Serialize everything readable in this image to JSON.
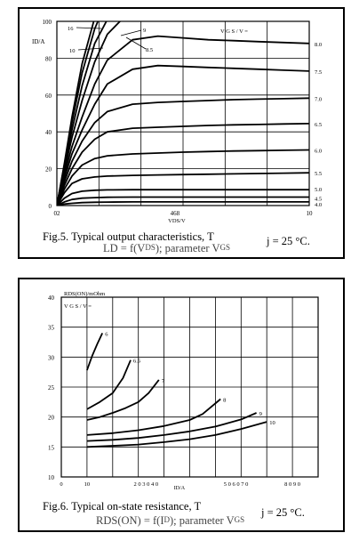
{
  "chart_data": [
    {
      "type": "line",
      "caption": {
        "line1": "Fig.5. Typical output characteristics, T",
        "line1_right": "j = 25 °C.",
        "line2_sub": "L",
        "line2": "D = f(V",
        "line2_small": "DS",
        "line2_rest": "); parameter V",
        "line2_tail": "GS"
      },
      "ylabel": "ID/A",
      "xlabel": "VDS/V",
      "legend_title": "V G S / V  =",
      "xlim": [
        0,
        10
      ],
      "ylim": [
        0,
        100
      ],
      "x_ticks": [
        {
          "v": 0,
          "label": "02"
        },
        {
          "v": 4.68,
          "label": "468"
        },
        {
          "v": 10,
          "label": "10"
        }
      ],
      "y_ticks": [
        0,
        20,
        40,
        60,
        80,
        100
      ],
      "series": [
        {
          "name": "4.0",
          "x": [
            0,
            0.3,
            0.6,
            1,
            1.5,
            2,
            3,
            4,
            5,
            6,
            7,
            8,
            9,
            10
          ],
          "y": [
            0,
            0.8,
            1.2,
            1.6,
            1.8,
            1.9,
            2,
            2,
            2,
            2,
            2,
            2,
            2,
            2
          ]
        },
        {
          "name": "4.5",
          "x": [
            0,
            0.3,
            0.6,
            1,
            1.5,
            2,
            3,
            4,
            5,
            6,
            7,
            8,
            9,
            10
          ],
          "y": [
            0,
            2,
            3.3,
            4,
            4.3,
            4.5,
            4.6,
            4.6,
            4.6,
            4.6,
            4.6,
            4.6,
            4.6,
            4.6
          ]
        },
        {
          "name": "5.0",
          "x": [
            0,
            0.3,
            0.6,
            1,
            1.5,
            2,
            3,
            4,
            5,
            6,
            7,
            8,
            9,
            10
          ],
          "y": [
            0,
            4,
            6.5,
            7.8,
            8.3,
            8.5,
            8.6,
            8.6,
            8.6,
            8.6,
            8.6,
            8.6,
            8.6,
            8.6
          ]
        },
        {
          "name": "5.5",
          "x": [
            0,
            0.3,
            0.6,
            1,
            1.5,
            2,
            3,
            4,
            5,
            6,
            7,
            8,
            9,
            10
          ],
          "y": [
            0,
            7,
            12,
            14.5,
            15.5,
            16,
            16.4,
            16.6,
            16.8,
            17,
            17.2,
            17.4,
            17.6,
            17.8
          ]
        },
        {
          "name": "6.0",
          "x": [
            0,
            0.3,
            0.6,
            1,
            1.5,
            2,
            3,
            4,
            5,
            6,
            7,
            8,
            9,
            10
          ],
          "y": [
            0,
            9,
            16,
            22,
            25.5,
            27,
            28,
            28.5,
            29,
            29.3,
            29.6,
            29.8,
            30,
            30.2
          ]
        },
        {
          "name": "6.5",
          "x": [
            0,
            0.3,
            0.6,
            1,
            1.5,
            2,
            3,
            4,
            5,
            6,
            7,
            8,
            9,
            10
          ],
          "y": [
            0,
            11,
            20,
            29,
            36,
            40,
            42,
            42.5,
            43,
            43.5,
            43.8,
            44,
            44.3,
            44.5
          ]
        },
        {
          "name": "7.0",
          "x": [
            0,
            0.3,
            0.6,
            1,
            1.5,
            2,
            3,
            4,
            5,
            6,
            7,
            8,
            9,
            10
          ],
          "y": [
            0,
            13,
            24,
            35,
            45,
            51,
            55,
            56,
            56.5,
            57,
            57.5,
            57.8,
            58,
            58.3
          ]
        },
        {
          "name": "7.5",
          "x": [
            0,
            0.3,
            0.6,
            1,
            1.5,
            2,
            3,
            4,
            5,
            6,
            7,
            8,
            9,
            10
          ],
          "y": [
            0,
            15,
            28,
            41,
            55,
            66,
            74,
            76,
            75.5,
            75,
            74.5,
            74,
            73.5,
            73
          ]
        },
        {
          "name": "8.0",
          "x": [
            0,
            0.3,
            0.6,
            1,
            1.5,
            2,
            3,
            4,
            5,
            6,
            7,
            8,
            9,
            10
          ],
          "y": [
            0,
            17,
            32,
            48,
            66,
            79,
            90,
            92,
            91,
            90,
            89.5,
            89,
            88.5,
            88
          ]
        },
        {
          "name": "8.5",
          "x": [
            0,
            0.3,
            0.6,
            1,
            1.5,
            2,
            2.5,
            3
          ],
          "y": [
            0,
            19,
            37,
            57,
            78,
            93,
            100,
            104
          ]
        },
        {
          "name": "9",
          "x": [
            0,
            0.3,
            0.6,
            1,
            1.5,
            2,
            2.4
          ],
          "y": [
            0,
            21,
            41,
            65,
            88,
            101,
            108
          ]
        },
        {
          "name": "10",
          "x": [
            0,
            0.3,
            0.6,
            1,
            1.5,
            2
          ],
          "y": [
            0,
            22,
            45,
            72,
            96,
            112
          ]
        },
        {
          "name": "16",
          "x": [
            0,
            0.3,
            0.6,
            1,
            1.5,
            1.8
          ],
          "y": [
            0,
            23,
            48,
            77,
            102,
            114
          ]
        }
      ]
    },
    {
      "type": "line",
      "caption": {
        "line1": "Fig.6. Typical on-state resistance, T",
        "line1_right": "j = 25 °C.",
        "line2_sub": "R",
        "line2": "DS(ON) = f(I",
        "line2_small": "D",
        "line2_rest": "); parameter V",
        "line2_tail": "GS"
      },
      "ylabel": "RDS(ON)/mOhm",
      "xlabel": "ID/A",
      "legend_title": "V G S / V  =",
      "xlim": [
        0,
        100
      ],
      "ylim": [
        10,
        40
      ],
      "x_ticks": [
        {
          "v": 0,
          "label": "0"
        },
        {
          "v": 10,
          "label": "10"
        },
        {
          "v": 33,
          "label": "2 0 3 0 4 0"
        },
        {
          "v": 68,
          "label": "5 0 6 0 7 0"
        },
        {
          "v": 90,
          "label": "8 0 9 0"
        }
      ],
      "y_ticks": [
        10,
        15,
        20,
        25,
        30,
        35,
        40
      ],
      "series": [
        {
          "name": "6",
          "x": [
            10,
            12,
            14,
            16
          ],
          "y": [
            27.8,
            30.2,
            32.2,
            34
          ]
        },
        {
          "name": "6.5",
          "x": [
            10,
            15,
            20,
            24,
            27
          ],
          "y": [
            21.3,
            22.5,
            24,
            26.5,
            29.5
          ]
        },
        {
          "name": "7",
          "x": [
            10,
            15,
            20,
            25,
            30,
            34,
            38
          ],
          "y": [
            19.5,
            20,
            20.7,
            21.5,
            22.5,
            24,
            26.2
          ]
        },
        {
          "name": "8",
          "x": [
            10,
            20,
            30,
            40,
            50,
            55,
            62
          ],
          "y": [
            17,
            17.3,
            17.8,
            18.5,
            19.5,
            20.5,
            23
          ]
        },
        {
          "name": "9",
          "x": [
            10,
            20,
            30,
            40,
            50,
            60,
            70,
            76
          ],
          "y": [
            16,
            16.2,
            16.5,
            17,
            17.6,
            18.4,
            19.6,
            20.7
          ]
        },
        {
          "name": "10",
          "x": [
            10,
            20,
            30,
            40,
            50,
            60,
            70,
            80
          ],
          "y": [
            15,
            15.2,
            15.4,
            15.8,
            16.3,
            17,
            18,
            19.2
          ]
        }
      ]
    }
  ]
}
